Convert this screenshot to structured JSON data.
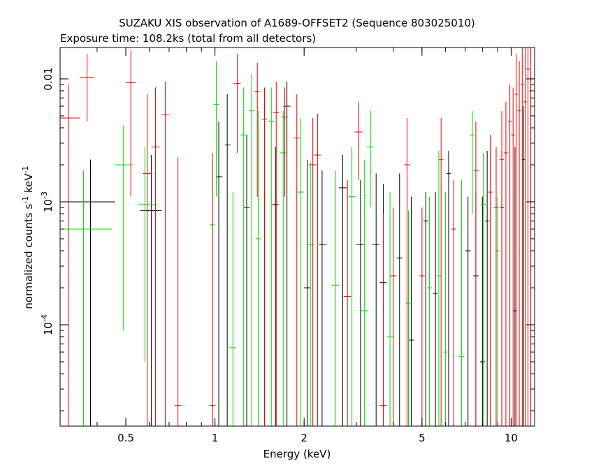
{
  "chart_data": {
    "type": "scatter",
    "title": "SUZAKU XIS observation of A1689-OFFSET2 (Sequence 803025010)",
    "subtitle": "Exposure time: 108.2ks (total from all detectors)",
    "xlabel": "Energy (keV)",
    "ylabel_main": "normalized counts s",
    "ylabel_mid": " keV",
    "ylabel_exp": "-1",
    "x_scale": "log",
    "y_scale": "log",
    "xlim": [
      0.3,
      12
    ],
    "ylim": [
      1.5e-05,
      0.018
    ],
    "x_ticks": [
      {
        "value": 0.5,
        "label": "0.5"
      },
      {
        "value": 1,
        "label": "1"
      },
      {
        "value": 2,
        "label": "2"
      },
      {
        "value": 5,
        "label": "5"
      },
      {
        "value": 10,
        "label": "10"
      }
    ],
    "y_ticks": [
      {
        "value": 0.0001,
        "base": "10",
        "exp": "-4"
      },
      {
        "value": 0.001,
        "base": "10",
        "exp": "-3"
      },
      {
        "value": 0.01,
        "base": "0.01",
        "exp": ""
      }
    ],
    "series": [
      {
        "color": "#000000",
        "points": [
          {
            "x": 0.38,
            "xlo": 0.3,
            "xhi": 0.46,
            "y": 0.001,
            "ylo": 1.5e-05,
            "yhi": 0.0022
          },
          {
            "x": 0.61,
            "xlo": 0.56,
            "xhi": 0.66,
            "y": 0.00085,
            "ylo": 1.5e-05,
            "yhi": 0.0024
          },
          {
            "x": 1.03,
            "xlo": 1.01,
            "xhi": 1.06,
            "y": 0.0016,
            "ylo": 1.5e-05,
            "yhi": 0.0045
          },
          {
            "x": 1.1,
            "xlo": 1.08,
            "xhi": 1.13,
            "y": 0.0029,
            "ylo": 1.5e-05,
            "yhi": 0.0075
          },
          {
            "x": 1.28,
            "xlo": 1.25,
            "xhi": 1.31,
            "y": 0.0009,
            "ylo": 1.5e-05,
            "yhi": 0.0035
          },
          {
            "x": 1.6,
            "xlo": 1.56,
            "xhi": 1.64,
            "y": 0.00095,
            "ylo": 1.5e-05,
            "yhi": 0.0028
          },
          {
            "x": 1.75,
            "xlo": 1.7,
            "xhi": 1.8,
            "y": 0.006,
            "ylo": 1.5e-05,
            "yhi": 0.0095
          },
          {
            "x": 2.05,
            "xlo": 2.0,
            "xhi": 2.1,
            "y": 0.0002,
            "ylo": 1.5e-05,
            "yhi": 0.0022
          },
          {
            "x": 2.3,
            "xlo": 2.24,
            "xhi": 2.38,
            "y": 0.00045,
            "ylo": 1.5e-05,
            "yhi": 0.0018
          },
          {
            "x": 2.7,
            "xlo": 2.62,
            "xhi": 2.78,
            "y": 0.0013,
            "ylo": 1.5e-05,
            "yhi": 0.0024
          },
          {
            "x": 3.1,
            "xlo": 3.0,
            "xhi": 3.2,
            "y": 0.00045,
            "ylo": 1.5e-05,
            "yhi": 0.0015
          },
          {
            "x": 3.5,
            "xlo": 3.4,
            "xhi": 3.6,
            "y": 0.00045,
            "ylo": 1.5e-05,
            "yhi": 0.0017
          },
          {
            "x": 3.7,
            "xlo": 3.6,
            "xhi": 3.8,
            "y": 0.00022,
            "ylo": 1.5e-05,
            "yhi": 0.0014
          },
          {
            "x": 4.2,
            "xlo": 4.1,
            "xhi": 4.3,
            "y": 0.00035,
            "ylo": 1.5e-05,
            "yhi": 0.0017
          },
          {
            "x": 4.6,
            "xlo": 4.5,
            "xhi": 4.7,
            "y": 7.5e-05,
            "ylo": 1.5e-05,
            "yhi": 0.0011
          },
          {
            "x": 5.15,
            "xlo": 5.05,
            "xhi": 5.25,
            "y": 0.0007,
            "ylo": 1.5e-05,
            "yhi": 0.0012
          },
          {
            "x": 5.55,
            "xlo": 5.45,
            "xhi": 5.65,
            "y": 0.00018,
            "ylo": 1.5e-05,
            "yhi": 0.0012
          },
          {
            "x": 6.15,
            "xlo": 6.05,
            "xhi": 6.25,
            "y": 0.0017,
            "ylo": 1.5e-05,
            "yhi": 0.0026
          },
          {
            "x": 7.15,
            "xlo": 7.0,
            "xhi": 7.3,
            "y": 0.0004,
            "ylo": 1.5e-05,
            "yhi": 0.0011
          },
          {
            "x": 7.6,
            "xlo": 7.45,
            "xhi": 7.75,
            "y": 0.00025,
            "ylo": 1.5e-05,
            "yhi": 0.0012
          },
          {
            "x": 8.0,
            "xlo": 7.85,
            "xhi": 8.15,
            "y": 5e-05,
            "ylo": 1.5e-05,
            "yhi": 0.0011
          },
          {
            "x": 8.3,
            "xlo": 8.15,
            "xhi": 8.45,
            "y": 0.0007,
            "ylo": 1.5e-05,
            "yhi": 0.0026
          },
          {
            "x": 9.3,
            "xlo": 9.15,
            "xhi": 9.45,
            "y": 0.0009,
            "ylo": 1.5e-05,
            "yhi": 0.0026
          },
          {
            "x": 10.3,
            "xlo": 10.15,
            "xhi": 10.45,
            "y": 0.00013,
            "ylo": 1.5e-05,
            "yhi": 0.0028
          },
          {
            "x": 11.0,
            "xlo": 10.85,
            "xhi": 11.15,
            "y": 0.0022,
            "ylo": 1.5e-05,
            "yhi": 0.006
          }
        ]
      },
      {
        "color": "#00dd00",
        "points": [
          {
            "x": 0.36,
            "xlo": 0.3,
            "xhi": 0.45,
            "y": 0.0006,
            "ylo": 1.5e-05,
            "yhi": 0.0018
          },
          {
            "x": 0.49,
            "xlo": 0.46,
            "xhi": 0.53,
            "y": 0.002,
            "ylo": 9e-05,
            "yhi": 0.0042
          },
          {
            "x": 0.58,
            "xlo": 0.55,
            "xhi": 0.63,
            "y": 0.00095,
            "ylo": 5e-05,
            "yhi": 0.0028
          },
          {
            "x": 0.98,
            "xlo": 0.96,
            "xhi": 1.0,
            "y": 0.00065,
            "ylo": 1.5e-05,
            "yhi": 0.0022
          },
          {
            "x": 1.01,
            "xlo": 0.99,
            "xhi": 1.03,
            "y": 0.0062,
            "ylo": 0.0011,
            "yhi": 0.014
          },
          {
            "x": 1.15,
            "xlo": 1.12,
            "xhi": 1.18,
            "y": 6.5e-05,
            "ylo": 1.5e-05,
            "yhi": 0.0012
          },
          {
            "x": 1.25,
            "xlo": 1.22,
            "xhi": 1.28,
            "y": 0.0035,
            "ylo": 1.5e-05,
            "yhi": 0.0085
          },
          {
            "x": 1.33,
            "xlo": 1.3,
            "xhi": 1.36,
            "y": 0.0055,
            "ylo": 1.5e-05,
            "yhi": 0.011
          },
          {
            "x": 1.4,
            "xlo": 1.37,
            "xhi": 1.43,
            "y": 0.0005,
            "ylo": 1.5e-05,
            "yhi": 0.0055
          },
          {
            "x": 1.55,
            "xlo": 1.51,
            "xhi": 1.59,
            "y": 0.0045,
            "ylo": 1.5e-05,
            "yhi": 0.0085
          },
          {
            "x": 1.7,
            "xlo": 1.65,
            "xhi": 1.75,
            "y": 0.0025,
            "ylo": 1.5e-05,
            "yhi": 0.0055
          },
          {
            "x": 1.95,
            "xlo": 1.9,
            "xhi": 2.0,
            "y": 0.0012,
            "ylo": 1.5e-05,
            "yhi": 0.0048
          },
          {
            "x": 2.1,
            "xlo": 2.04,
            "xhi": 2.16,
            "y": 0.00045,
            "ylo": 1.5e-05,
            "yhi": 0.0021
          },
          {
            "x": 2.55,
            "xlo": 2.47,
            "xhi": 2.63,
            "y": 0.00021,
            "ylo": 1.5e-05,
            "yhi": 0.0018
          },
          {
            "x": 2.9,
            "xlo": 2.82,
            "xhi": 2.98,
            "y": 0.0011,
            "ylo": 1.5e-05,
            "yhi": 0.0028
          },
          {
            "x": 3.2,
            "xlo": 3.1,
            "xhi": 3.3,
            "y": 0.00013,
            "ylo": 1.5e-05,
            "yhi": 0.0022
          },
          {
            "x": 3.35,
            "xlo": 3.25,
            "xhi": 3.45,
            "y": 0.0028,
            "ylo": 0.0009,
            "yhi": 0.0055
          },
          {
            "x": 3.9,
            "xlo": 3.8,
            "xhi": 4.0,
            "y": 8e-05,
            "ylo": 1.5e-05,
            "yhi": 0.0012
          },
          {
            "x": 4.5,
            "xlo": 4.4,
            "xhi": 4.6,
            "y": 0.00015,
            "ylo": 1.5e-05,
            "yhi": 0.00085
          },
          {
            "x": 5.3,
            "xlo": 5.2,
            "xhi": 5.4,
            "y": 0.0002,
            "ylo": 1.5e-05,
            "yhi": 0.0011
          },
          {
            "x": 5.7,
            "xlo": 5.6,
            "xhi": 5.8,
            "y": 0.00025,
            "ylo": 1.5e-05,
            "yhi": 0.0026
          },
          {
            "x": 6.0,
            "xlo": 5.9,
            "xhi": 6.1,
            "y": 6e-05,
            "ylo": 1.5e-05,
            "yhi": 0.0012
          },
          {
            "x": 6.8,
            "xlo": 6.65,
            "xhi": 6.95,
            "y": 5.5e-05,
            "ylo": 1.5e-05,
            "yhi": 0.0015
          },
          {
            "x": 7.4,
            "xlo": 7.25,
            "xhi": 7.55,
            "y": 0.0035,
            "ylo": 0.0008,
            "yhi": 0.0055
          },
          {
            "x": 8.05,
            "xlo": 7.9,
            "xhi": 8.2,
            "y": 0.00095,
            "ylo": 1.5e-05,
            "yhi": 0.0025
          },
          {
            "x": 9.0,
            "xlo": 8.85,
            "xhi": 9.15,
            "y": 0.0004,
            "ylo": 1.5e-05,
            "yhi": 0.0011
          }
        ]
      },
      {
        "color": "#ee0000",
        "points": [
          {
            "x": 0.32,
            "xlo": 0.3,
            "xhi": 0.35,
            "y": 0.0048,
            "ylo": 1.5e-05,
            "yhi": 0.009
          },
          {
            "x": 0.37,
            "xlo": 0.35,
            "xhi": 0.39,
            "y": 0.0103,
            "ylo": 0.0045,
            "yhi": 0.016
          },
          {
            "x": 0.52,
            "xlo": 0.5,
            "xhi": 0.54,
            "y": 0.0093,
            "ylo": 0.0011,
            "yhi": 0.017
          },
          {
            "x": 0.59,
            "xlo": 0.57,
            "xhi": 0.61,
            "y": 0.0017,
            "ylo": 1.5e-05,
            "yhi": 0.0075
          },
          {
            "x": 0.63,
            "xlo": 0.61,
            "xhi": 0.65,
            "y": 0.0028,
            "ylo": 1.5e-05,
            "yhi": 0.0085
          },
          {
            "x": 0.68,
            "xlo": 0.66,
            "xhi": 0.7,
            "y": 0.0051,
            "ylo": 1.5e-05,
            "yhi": 0.0095
          },
          {
            "x": 0.75,
            "xlo": 0.73,
            "xhi": 0.77,
            "y": 2.2e-05,
            "ylo": 1.5e-05,
            "yhi": 0.0023
          },
          {
            "x": 0.98,
            "xlo": 0.96,
            "xhi": 1.0,
            "y": 2.2e-05,
            "ylo": 1.5e-05,
            "yhi": 0.0025
          },
          {
            "x": 1.19,
            "xlo": 1.16,
            "xhi": 1.22,
            "y": 0.0092,
            "ylo": 0.0025,
            "yhi": 0.016
          },
          {
            "x": 1.39,
            "xlo": 1.36,
            "xhi": 1.42,
            "y": 0.0079,
            "ylo": 0.0011,
            "yhi": 0.0135
          },
          {
            "x": 1.47,
            "xlo": 1.44,
            "xhi": 1.5,
            "y": 0.0047,
            "ylo": 1.5e-05,
            "yhi": 0.0085
          },
          {
            "x": 1.61,
            "xlo": 1.57,
            "xhi": 1.65,
            "y": 0.0053,
            "ylo": 1.5e-05,
            "yhi": 0.0095
          },
          {
            "x": 1.72,
            "xlo": 1.68,
            "xhi": 1.76,
            "y": 0.0049,
            "ylo": 0.0011,
            "yhi": 0.0085
          },
          {
            "x": 1.89,
            "xlo": 1.84,
            "xhi": 1.94,
            "y": 0.0033,
            "ylo": 1.5e-05,
            "yhi": 0.0075
          },
          {
            "x": 2.14,
            "xlo": 2.08,
            "xhi": 2.2,
            "y": 0.002,
            "ylo": 1.5e-05,
            "yhi": 0.0048
          },
          {
            "x": 2.22,
            "xlo": 2.16,
            "xhi": 2.28,
            "y": 0.0024,
            "ylo": 1.5e-05,
            "yhi": 0.0052
          },
          {
            "x": 2.8,
            "xlo": 2.72,
            "xhi": 2.88,
            "y": 0.00017,
            "ylo": 1.5e-05,
            "yhi": 0.0015
          },
          {
            "x": 3.05,
            "xlo": 2.96,
            "xhi": 3.14,
            "y": 0.0037,
            "ylo": 0.0015,
            "yhi": 0.0065
          },
          {
            "x": 3.7,
            "xlo": 3.6,
            "xhi": 3.8,
            "y": 2.2e-05,
            "ylo": 1.5e-05,
            "yhi": 0.0008
          },
          {
            "x": 4.0,
            "xlo": 3.9,
            "xhi": 4.1,
            "y": 0.00025,
            "ylo": 1.5e-05,
            "yhi": 0.0009
          },
          {
            "x": 4.45,
            "xlo": 4.35,
            "xhi": 4.55,
            "y": 0.002,
            "ylo": 1.5e-05,
            "yhi": 0.0048
          },
          {
            "x": 5.0,
            "xlo": 4.9,
            "xhi": 5.1,
            "y": 0.00025,
            "ylo": 1.5e-05,
            "yhi": 0.0009
          },
          {
            "x": 5.8,
            "xlo": 5.7,
            "xhi": 5.9,
            "y": 0.0022,
            "ylo": 1.5e-05,
            "yhi": 0.0048
          },
          {
            "x": 6.4,
            "xlo": 6.28,
            "xhi": 6.52,
            "y": 0.0006,
            "ylo": 1.5e-05,
            "yhi": 0.0015
          },
          {
            "x": 7.6,
            "xlo": 7.45,
            "xhi": 7.75,
            "y": 0.0018,
            "ylo": 1.5e-05,
            "yhi": 0.0045
          },
          {
            "x": 8.5,
            "xlo": 8.35,
            "xhi": 8.65,
            "y": 0.0012,
            "ylo": 1.5e-05,
            "yhi": 0.0035
          },
          {
            "x": 8.9,
            "xlo": 8.75,
            "xhi": 9.05,
            "y": 0.0009,
            "ylo": 1.5e-05,
            "yhi": 0.0028
          },
          {
            "x": 9.3,
            "xlo": 9.15,
            "xhi": 9.45,
            "y": 0.0022,
            "ylo": 1.5e-05,
            "yhi": 0.0055
          },
          {
            "x": 9.6,
            "xlo": 9.45,
            "xhi": 9.75,
            "y": 0.0025,
            "ylo": 1.5e-05,
            "yhi": 0.0065
          },
          {
            "x": 9.9,
            "xlo": 9.75,
            "xhi": 10.05,
            "y": 0.0045,
            "ylo": 1.5e-05,
            "yhi": 0.009
          },
          {
            "x": 10.15,
            "xlo": 10.0,
            "xhi": 10.3,
            "y": 0.0035,
            "ylo": 1.5e-05,
            "yhi": 0.0085
          },
          {
            "x": 10.4,
            "xlo": 10.25,
            "xhi": 10.55,
            "y": 0.0075,
            "ylo": 1.5e-05,
            "yhi": 0.016
          },
          {
            "x": 10.65,
            "xlo": 10.5,
            "xhi": 10.8,
            "y": 0.0055,
            "ylo": 1.5e-05,
            "yhi": 0.014
          },
          {
            "x": 10.9,
            "xlo": 10.75,
            "xhi": 11.05,
            "y": 0.009,
            "ylo": 1.5e-05,
            "yhi": 0.018
          },
          {
            "x": 11.15,
            "xlo": 11.0,
            "xhi": 11.3,
            "y": 0.0065,
            "ylo": 1.5e-05,
            "yhi": 0.018
          },
          {
            "x": 11.4,
            "xlo": 11.25,
            "xhi": 11.55,
            "y": 0.012,
            "ylo": 1.5e-05,
            "yhi": 0.018
          },
          {
            "x": 11.65,
            "xlo": 11.5,
            "xhi": 11.8,
            "y": 0.008,
            "ylo": 1.5e-05,
            "yhi": 0.018
          }
        ]
      }
    ]
  }
}
